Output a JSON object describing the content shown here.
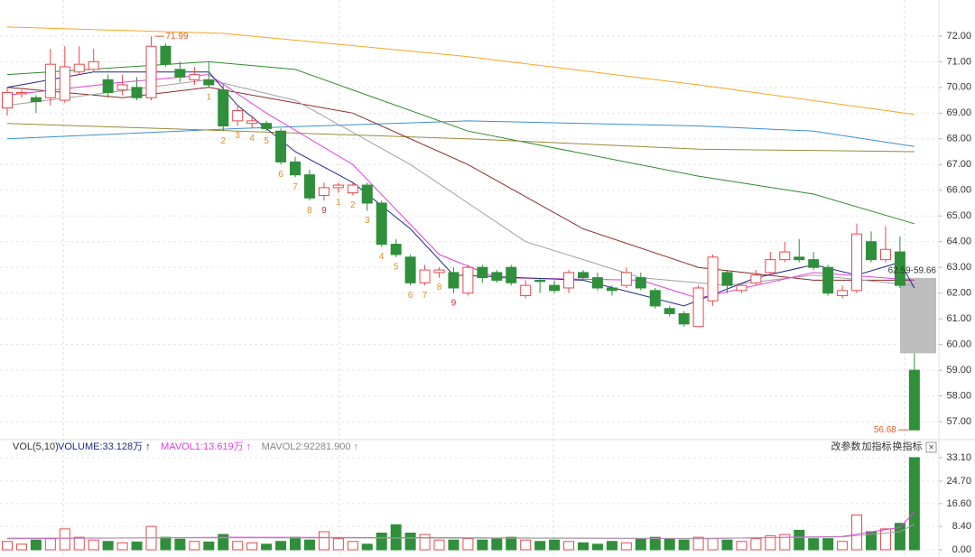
{
  "chart_data": [
    {
      "type": "candlestick",
      "open": [
        69.2,
        69.75,
        69.6,
        69.6,
        69.5,
        70.6,
        70.7,
        70.3,
        69.9,
        70.0,
        69.6,
        71.6,
        70.7,
        70.3,
        70.3,
        69.9,
        68.7,
        68.6,
        68.6,
        68.3,
        67.1,
        66.6,
        65.8,
        66.1,
        65.9,
        66.2,
        65.5,
        63.9,
        63.4,
        62.4,
        62.8,
        62.8,
        62.0,
        63.0,
        62.8,
        63.0,
        61.9,
        62.5,
        62.3,
        62.2,
        62.8,
        62.6,
        62.2,
        62.3,
        62.6,
        62.1,
        61.4,
        61.2,
        60.7,
        61.7,
        62.8,
        62.1,
        62.4,
        62.8,
        63.3,
        63.4,
        63.3,
        63.0,
        61.9,
        62.1,
        64.0,
        63.3,
        63.6,
        59.0
      ],
      "high": [
        70.0,
        69.9,
        69.7,
        71.5,
        71.6,
        71.6,
        71.5,
        70.5,
        70.5,
        70.4,
        71.99,
        71.7,
        71.0,
        70.8,
        71.0,
        70.1,
        69.3,
        68.9,
        68.7,
        68.4,
        67.3,
        66.8,
        66.3,
        66.3,
        66.3,
        66.3,
        65.6,
        64.1,
        63.5,
        63.1,
        63.0,
        63.0,
        63.1,
        63.1,
        62.9,
        63.1,
        62.5,
        62.6,
        62.5,
        62.9,
        62.9,
        62.8,
        62.3,
        63.0,
        62.8,
        62.2,
        61.5,
        61.3,
        62.3,
        63.5,
        62.9,
        62.4,
        62.9,
        63.6,
        64.0,
        64.1,
        63.6,
        63.1,
        62.3,
        64.7,
        64.4,
        64.6,
        64.2,
        59.66
      ],
      "low": [
        68.9,
        69.6,
        69.0,
        69.3,
        69.4,
        70.5,
        70.6,
        69.6,
        69.7,
        69.5,
        69.5,
        70.8,
        70.2,
        70.1,
        70.0,
        68.3,
        68.5,
        68.4,
        68.3,
        67.0,
        66.5,
        65.6,
        65.6,
        65.9,
        65.8,
        65.2,
        63.8,
        63.4,
        62.3,
        62.3,
        62.6,
        62.0,
        61.9,
        62.4,
        62.4,
        62.3,
        61.8,
        62.0,
        62.0,
        62.0,
        62.5,
        62.1,
        61.9,
        62.2,
        62.1,
        61.4,
        61.1,
        60.7,
        60.7,
        61.5,
        62.0,
        62.0,
        62.3,
        62.7,
        63.2,
        63.2,
        62.9,
        61.9,
        61.8,
        62.0,
        63.2,
        63.2,
        62.2,
        56.68
      ],
      "close": [
        69.8,
        69.8,
        69.45,
        70.9,
        70.8,
        70.9,
        71.0,
        69.8,
        70.1,
        69.6,
        71.6,
        70.9,
        70.4,
        70.5,
        70.1,
        68.5,
        69.1,
        68.7,
        68.4,
        67.1,
        66.6,
        65.7,
        66.1,
        66.2,
        66.2,
        65.5,
        63.9,
        63.5,
        62.4,
        62.9,
        62.9,
        62.2,
        63.0,
        62.6,
        62.5,
        62.4,
        62.3,
        62.45,
        62.1,
        62.8,
        62.6,
        62.2,
        62.1,
        62.8,
        62.2,
        61.5,
        61.2,
        60.8,
        62.2,
        63.4,
        62.3,
        62.3,
        62.7,
        63.3,
        63.6,
        63.3,
        63.0,
        62.0,
        62.1,
        64.3,
        63.3,
        63.7,
        62.3,
        56.68
      ],
      "td_labels": [
        null,
        null,
        null,
        null,
        null,
        null,
        null,
        null,
        null,
        null,
        null,
        null,
        null,
        null,
        "1",
        "2",
        "3",
        "4",
        "5",
        "6",
        "7",
        "8",
        "9",
        "1",
        "2",
        "3",
        "4",
        "5",
        "6",
        "7",
        "8",
        "9",
        null,
        null,
        null,
        null,
        null,
        null,
        null,
        null,
        null,
        null,
        null,
        null,
        null,
        null,
        null,
        null,
        null,
        null,
        null,
        null,
        null,
        null,
        null,
        null,
        null,
        null,
        null,
        null,
        null,
        null,
        null,
        null
      ],
      "up_color": "#e8474b",
      "down_color": "#2f8f3a",
      "lines": [
        {
          "color": "#f5a623",
          "x": [
            0,
            15,
            32,
            48,
            63
          ],
          "values": [
            72.35,
            72.1,
            71.2,
            70.1,
            68.95
          ]
        },
        {
          "color": "#2e8b2e",
          "x": [
            0,
            14,
            20,
            32,
            48,
            56,
            63
          ],
          "values": [
            70.5,
            71.0,
            70.7,
            68.3,
            66.55,
            65.85,
            64.7
          ]
        },
        {
          "color": "#3a8fd0",
          "x": [
            0,
            16,
            32,
            48,
            56,
            63
          ],
          "values": [
            68.0,
            68.4,
            68.7,
            68.5,
            68.3,
            67.7
          ]
        },
        {
          "color": "#9a8a3a",
          "x": [
            0,
            16,
            32,
            48,
            63
          ],
          "values": [
            68.6,
            68.3,
            68.0,
            67.6,
            67.5
          ]
        },
        {
          "color": "#8b2a2a",
          "x": [
            0,
            8,
            14,
            24,
            32,
            40,
            48,
            56,
            63
          ],
          "values": [
            70.0,
            69.6,
            70.0,
            69.0,
            67.0,
            64.5,
            63.0,
            62.5,
            62.5
          ]
        },
        {
          "color": "#a0a0a0",
          "x": [
            0,
            14,
            20,
            28,
            36,
            44,
            50,
            56,
            63
          ],
          "values": [
            69.3,
            70.3,
            69.5,
            67.0,
            64.0,
            62.6,
            62.3,
            62.7,
            62.3
          ]
        },
        {
          "color": "#e040e0",
          "x": [
            0,
            8,
            14,
            18,
            24,
            30,
            34,
            44,
            48,
            56,
            63
          ],
          "values": [
            69.7,
            70.2,
            70.5,
            69.0,
            67.0,
            63.5,
            62.6,
            62.5,
            61.8,
            62.8,
            62.5
          ]
        },
        {
          "color": "#1f2a8a",
          "x": [
            0,
            6,
            14,
            16,
            20,
            24,
            28,
            31,
            40,
            47,
            52,
            56,
            59,
            62,
            63
          ],
          "values": [
            70.0,
            70.6,
            70.6,
            69.3,
            67.5,
            66.3,
            64.5,
            62.7,
            62.5,
            61.5,
            62.6,
            63.1,
            62.7,
            63.2,
            62.2
          ]
        }
      ],
      "gap": [
        62.59,
        59.66
      ],
      "gap_label": "62.59-59.66",
      "ylim": [
        56.3,
        73.4
      ],
      "yticks": [
        {
          "value": 57,
          "label": "57.00"
        },
        {
          "value": 58,
          "label": "58.00"
        },
        {
          "value": 59,
          "label": "59.00"
        },
        {
          "value": 60,
          "label": "60.00"
        },
        {
          "value": 61,
          "label": "61.00"
        },
        {
          "value": 62,
          "label": "62.00"
        },
        {
          "value": 63,
          "label": "63.00"
        },
        {
          "value": 64,
          "label": "64.00"
        },
        {
          "value": 65,
          "label": "65.00"
        },
        {
          "value": 66,
          "label": "66.00"
        },
        {
          "value": 67,
          "label": "67.00"
        },
        {
          "value": 68,
          "label": "68.00"
        },
        {
          "value": 69,
          "label": "69.00"
        },
        {
          "value": 70,
          "label": "70.00"
        },
        {
          "value": 71,
          "label": "71.00"
        },
        {
          "value": 72,
          "label": "72.00"
        }
      ],
      "grid": true
    },
    {
      "type": "bar",
      "title": "VOL(5,10)",
      "legend": [
        "VOLUME:33.128万",
        "MAVOL1:13.619万",
        "MAVOL2:92281.900"
      ],
      "legend_colors": [
        "#1f2a8a",
        "#e040e0",
        "#888888"
      ],
      "buttons": [
        "改参数",
        "加指标",
        "换指标"
      ],
      "values": [
        3.0,
        2.0,
        3.5,
        4.0,
        7.5,
        4.5,
        3.5,
        3.0,
        2.5,
        2.8,
        8.4,
        4.5,
        3.8,
        3.0,
        2.8,
        5.5,
        3.0,
        2.5,
        2.0,
        3.0,
        4.5,
        3.5,
        6.5,
        4.0,
        3.0,
        2.0,
        6.0,
        9.0,
        6.0,
        5.5,
        3.5,
        3.5,
        4.0,
        3.5,
        4.0,
        4.5,
        3.5,
        3.0,
        3.5,
        3.0,
        2.5,
        2.0,
        3.0,
        2.5,
        4.0,
        4.5,
        4.0,
        3.5,
        4.5,
        4.0,
        3.5,
        3.0,
        4.0,
        5.0,
        5.5,
        7.0,
        4.0,
        4.0,
        3.0,
        12.5,
        6.5,
        7.5,
        9.5,
        33.128
      ],
      "lines": [
        {
          "color": "#e040e0",
          "x": [
            0,
            16,
            32,
            48,
            58,
            62,
            63
          ],
          "values": [
            4.0,
            4.5,
            4.3,
            4.0,
            4.8,
            8.0,
            13.619
          ]
        },
        {
          "color": "#a0a0a0",
          "x": [
            0,
            16,
            32,
            48,
            58,
            62,
            63
          ],
          "values": [
            4.2,
            4.3,
            4.2,
            4.1,
            4.6,
            6.5,
            9.228
          ]
        }
      ],
      "ylim": [
        0,
        33.1
      ],
      "yticks": [
        {
          "value": 0,
          "label": "0.00"
        },
        {
          "value": 8.4,
          "label": "8.40"
        },
        {
          "value": 16.6,
          "label": "16.60"
        },
        {
          "value": 24.7,
          "label": "24.70"
        },
        {
          "value": 33.1,
          "label": "33.10"
        }
      ],
      "grid": true
    }
  ]
}
